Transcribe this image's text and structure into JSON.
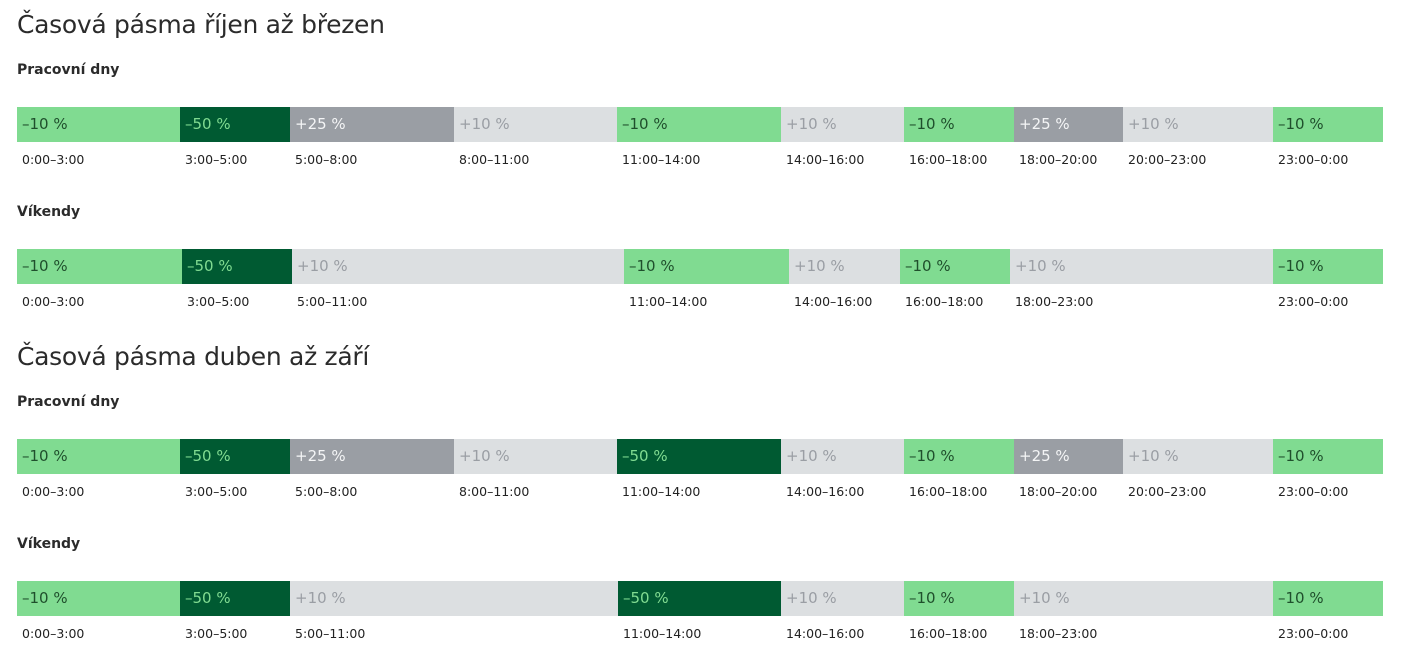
{
  "sections": [
    {
      "title": "Časová pásma říjen až březen",
      "groups": [
        {
          "label": "Pracovní dny",
          "segments": [
            {
              "label": "–10 %",
              "time": "0:00–3:00",
              "color": "#80db91"
            },
            {
              "label": "–50 %",
              "time": "3:00–5:00",
              "color": "#005a32"
            },
            {
              "label": "+25 %",
              "time": "5:00–8:00",
              "color": "#9a9ea4"
            },
            {
              "label": "+10 %",
              "time": "8:00–11:00",
              "color": "#dcdfe1"
            },
            {
              "label": "–10 %",
              "time": "11:00–14:00",
              "color": "#80db91"
            },
            {
              "label": "+10 %",
              "time": "14:00–16:00",
              "color": "#dcdfe1"
            },
            {
              "label": "–10 %",
              "time": "16:00–18:00",
              "color": "#80db91"
            },
            {
              "label": "+25 %",
              "time": "18:00–20:00",
              "color": "#9a9ea4"
            },
            {
              "label": "+10 %",
              "time": "20:00–23:00",
              "color": "#dcdfe1"
            },
            {
              "label": "–10 %",
              "time": "23:00–0:00",
              "color": "#80db91"
            }
          ]
        },
        {
          "label": "Víkendy",
          "segments": [
            {
              "label": "–10 %",
              "time": "0:00–3:00",
              "color": "#80db91"
            },
            {
              "label": "–50 %",
              "time": "3:00–5:00",
              "color": "#005a32"
            },
            {
              "label": "+10 %",
              "time": "5:00–11:00",
              "color": "#dcdfe1"
            },
            {
              "label": "–10 %",
              "time": "11:00–14:00",
              "color": "#80db91"
            },
            {
              "label": "+10 %",
              "time": "14:00–16:00",
              "color": "#dcdfe1"
            },
            {
              "label": "–10 %",
              "time": "16:00–18:00",
              "color": "#80db91"
            },
            {
              "label": "+10 %",
              "time": "18:00–23:00",
              "color": "#dcdfe1"
            },
            {
              "label": "–10 %",
              "time": "23:00–0:00",
              "color": "#80db91"
            }
          ]
        }
      ]
    },
    {
      "title": "Časová pásma duben až září",
      "groups": [
        {
          "label": "Pracovní dny",
          "segments": [
            {
              "label": "–10 %",
              "time": "0:00–3:00",
              "color": "#80db91"
            },
            {
              "label": "–50 %",
              "time": "3:00–5:00",
              "color": "#005a32"
            },
            {
              "label": "+25 %",
              "time": "5:00–8:00",
              "color": "#9a9ea4"
            },
            {
              "label": "+10 %",
              "time": "8:00–11:00",
              "color": "#dcdfe1"
            },
            {
              "label": "–50 %",
              "time": "11:00–14:00",
              "color": "#005a32"
            },
            {
              "label": "+10 %",
              "time": "14:00–16:00",
              "color": "#dcdfe1"
            },
            {
              "label": "–10 %",
              "time": "16:00–18:00",
              "color": "#80db91"
            },
            {
              "label": "+25 %",
              "time": "18:00–20:00",
              "color": "#9a9ea4"
            },
            {
              "label": "+10 %",
              "time": "20:00–23:00",
              "color": "#dcdfe1"
            },
            {
              "label": "–10 %",
              "time": "23:00–0:00",
              "color": "#80db91"
            }
          ]
        },
        {
          "label": "Víkendy",
          "segments": [
            {
              "label": "–10 %",
              "time": "0:00–3:00",
              "color": "#80db91"
            },
            {
              "label": "–50 %",
              "time": "3:00–5:00",
              "color": "#005a32"
            },
            {
              "label": "+10 %",
              "time": "5:00–11:00",
              "color": "#dcdfe1"
            },
            {
              "label": "–50 %",
              "time": "11:00–14:00",
              "color": "#005a32"
            },
            {
              "label": "+10 %",
              "time": "14:00–16:00",
              "color": "#dcdfe1"
            },
            {
              "label": "–10 %",
              "time": "16:00–18:00",
              "color": "#80db91"
            },
            {
              "label": "+10 %",
              "time": "18:00–23:00",
              "color": "#dcdfe1"
            },
            {
              "label": "–10 %",
              "time": "23:00–0:00",
              "color": "#80db91"
            }
          ]
        }
      ]
    }
  ]
}
